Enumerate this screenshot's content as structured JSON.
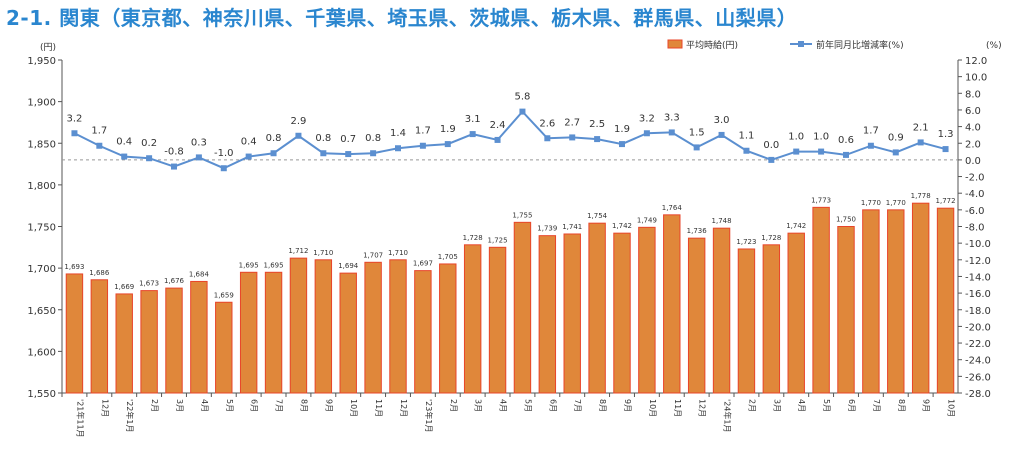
{
  "chart_data": {
    "type": "bar+line",
    "title": "2-1. 関東（東京都、神奈川県、千葉県、埼玉県、茨城県、栃木県、群馬県、山梨県）",
    "ylabel_left": "(円)",
    "ylabel_right": "(%)",
    "ylim_left": [
      1550,
      1950
    ],
    "ylim_right": [
      -28,
      12
    ],
    "left_ticks": [
      "1,550",
      "1,600",
      "1,650",
      "1,700",
      "1,750",
      "1,800",
      "1,850",
      "1,900",
      "1,950"
    ],
    "right_ticks": [
      "-28.0",
      "-26.0",
      "-24.0",
      "-22.0",
      "-20.0",
      "-18.0",
      "-16.0",
      "-14.0",
      "-12.0",
      "-10.0",
      "-8.0",
      "-6.0",
      "-4.0",
      "-2.0",
      "0.0",
      "2.0",
      "4.0",
      "6.0",
      "8.0",
      "10.0",
      "12.0"
    ],
    "categories": [
      "'21年11月",
      "12月",
      "'22年1月",
      "2月",
      "3月",
      "4月",
      "5月",
      "6月",
      "7月",
      "8月",
      "9月",
      "10月",
      "11月",
      "12月",
      "'23年1月",
      "2月",
      "3月",
      "4月",
      "5月",
      "6月",
      "7月",
      "8月",
      "9月",
      "10月",
      "11月",
      "12月",
      "'24年1月",
      "2月",
      "3月",
      "4月",
      "5月",
      "6月",
      "7月",
      "8月",
      "9月",
      "10月"
    ],
    "series": [
      {
        "name": "平均時給(円)",
        "type": "bar",
        "color": "#e0873a",
        "values": [
          1693,
          1686,
          1669,
          1673,
          1676,
          1684,
          1659,
          1695,
          1695,
          1712,
          1710,
          1694,
          1707,
          1710,
          1697,
          1705,
          1728,
          1725,
          1755,
          1739,
          1741,
          1754,
          1742,
          1749,
          1764,
          1736,
          1748,
          1723,
          1728,
          1742,
          1773,
          1750,
          1770,
          1770,
          1778,
          1772
        ]
      },
      {
        "name": "前年同月比増減率(%)",
        "type": "line",
        "color": "#5b8fd0",
        "values": [
          3.2,
          1.7,
          0.4,
          0.2,
          -0.8,
          0.3,
          -1.0,
          0.4,
          0.8,
          2.9,
          0.8,
          0.7,
          0.8,
          1.4,
          1.7,
          1.9,
          3.1,
          2.4,
          5.8,
          2.6,
          2.7,
          2.5,
          1.9,
          3.2,
          3.3,
          1.5,
          3.0,
          1.1,
          0.0,
          1.0,
          1.0,
          0.6,
          1.7,
          0.9,
          2.1,
          1.3
        ]
      }
    ],
    "legend_position": "top-right"
  }
}
